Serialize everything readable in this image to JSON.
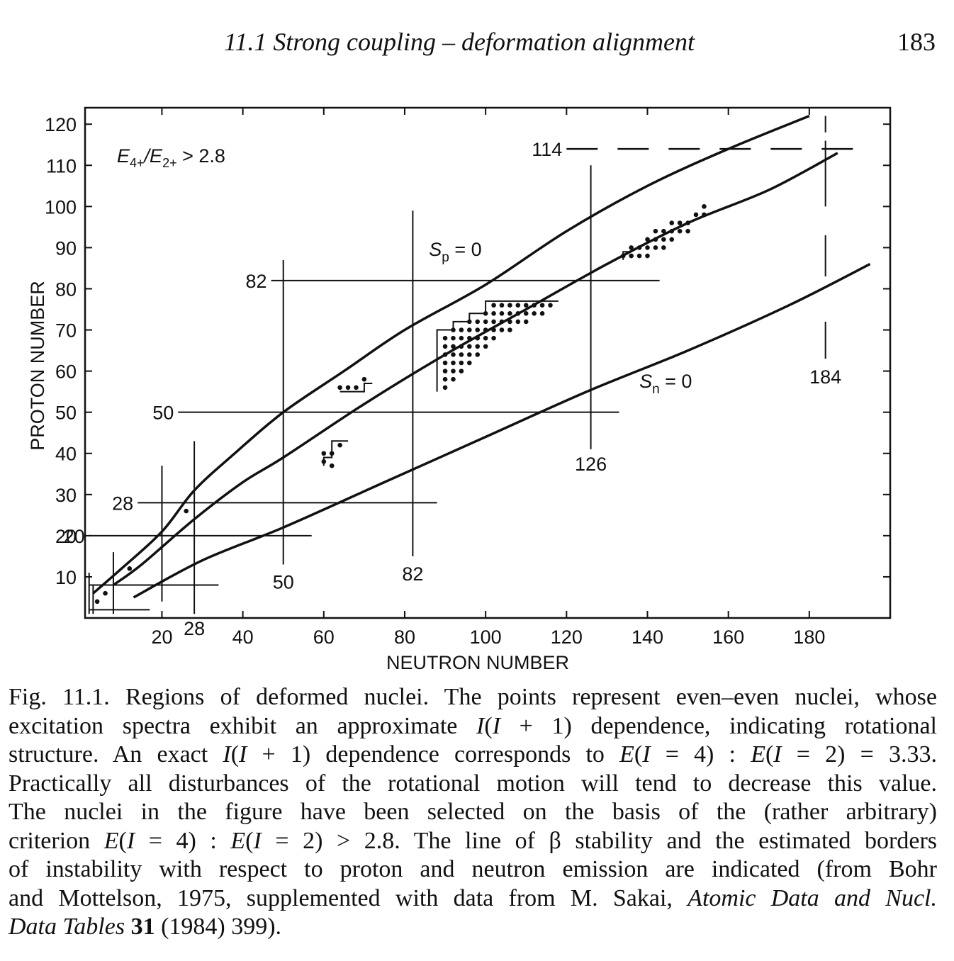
{
  "header": {
    "running_title": "11.1 Strong coupling – deformation alignment",
    "page_number": "183"
  },
  "chart_data": {
    "type": "line",
    "xlabel": "NEUTRON NUMBER",
    "ylabel": "PROTON NUMBER",
    "xlim": [
      1,
      200
    ],
    "ylim": [
      0,
      124
    ],
    "x_ticks": [
      "20",
      "40",
      "60",
      "80",
      "100",
      "120",
      "140",
      "160",
      "180"
    ],
    "y_ticks": [
      "10",
      "20",
      "30",
      "40",
      "50",
      "60",
      "70",
      "80",
      "90",
      "100",
      "110",
      "120"
    ],
    "corner_label": {
      "main": "E",
      "sub1": "4+",
      "mid": "/E",
      "sub2": "2+",
      "tail": " > 2.8"
    },
    "magic_proton_lines": [
      {
        "label": "20",
        "z": 20,
        "n_range": [
          2,
          57
        ]
      },
      {
        "label": "28",
        "z": 28,
        "n_range": [
          14,
          88
        ]
      },
      {
        "label": "50",
        "z": 50,
        "n_range": [
          24,
          133
        ]
      },
      {
        "label": "82",
        "z": 82,
        "n_range": [
          47,
          143
        ]
      },
      {
        "label": "114",
        "z": 114,
        "n_range": [
          120,
          195
        ]
      }
    ],
    "magic_neutron_lines": [
      {
        "label": "20",
        "n": 20,
        "z_range": [
          4,
          37
        ]
      },
      {
        "label": "28",
        "n": 28,
        "z_range": [
          1,
          43
        ]
      },
      {
        "label": "50",
        "n": 50,
        "z_range": [
          13,
          87
        ]
      },
      {
        "label": "82",
        "n": 82,
        "z_range": [
          15,
          99
        ]
      },
      {
        "label": "126",
        "n": 126,
        "z_range": [
          41,
          110
        ]
      },
      {
        "label": "184",
        "n": 184,
        "z_range": [
          61,
          122
        ]
      }
    ],
    "series": [
      {
        "name": "Sp = 0",
        "sub": "p",
        "x": [
          3,
          10,
          20,
          28,
          38,
          50,
          65,
          80,
          100,
          120,
          140,
          160,
          180
        ],
        "y": [
          6,
          12,
          21,
          31,
          40,
          50,
          60,
          70,
          81,
          94,
          105,
          114,
          122
        ]
      },
      {
        "name": "",
        "x": [
          8,
          15,
          28,
          40,
          50,
          70,
          90,
          110,
          130,
          150,
          170,
          187
        ],
        "y": [
          8,
          13,
          24,
          33,
          39,
          52,
          64,
          75,
          86,
          96,
          104,
          113
        ]
      },
      {
        "name": "Sn = 0",
        "sub": "n",
        "x": [
          13,
          30,
          50,
          75,
          100,
          125,
          150,
          175,
          195
        ],
        "y": [
          5,
          14,
          22,
          33,
          44,
          55,
          65,
          76,
          86
        ]
      }
    ],
    "nuclei_points": [
      {
        "n": 4,
        "z": 4
      },
      {
        "n": 6,
        "z": 6
      },
      {
        "n": 12,
        "z": 12
      },
      {
        "n": 26,
        "z": 26
      },
      {
        "n": 60,
        "z": 38
      },
      {
        "n": 62,
        "z": 40
      },
      {
        "n": 62,
        "z": 37
      },
      {
        "n": 64,
        "z": 42
      },
      {
        "n": 60,
        "z": 40
      },
      {
        "n": 64,
        "z": 56
      },
      {
        "n": 66,
        "z": 56
      },
      {
        "n": 68,
        "z": 56
      },
      {
        "n": 70,
        "z": 58
      },
      {
        "n": 90,
        "z": 56
      },
      {
        "n": 90,
        "z": 58
      },
      {
        "n": 90,
        "z": 60
      },
      {
        "n": 90,
        "z": 62
      },
      {
        "n": 90,
        "z": 64
      },
      {
        "n": 90,
        "z": 66
      },
      {
        "n": 90,
        "z": 68
      },
      {
        "n": 92,
        "z": 58
      },
      {
        "n": 92,
        "z": 60
      },
      {
        "n": 92,
        "z": 62
      },
      {
        "n": 92,
        "z": 64
      },
      {
        "n": 92,
        "z": 66
      },
      {
        "n": 92,
        "z": 68
      },
      {
        "n": 92,
        "z": 70
      },
      {
        "n": 94,
        "z": 60
      },
      {
        "n": 94,
        "z": 62
      },
      {
        "n": 94,
        "z": 64
      },
      {
        "n": 94,
        "z": 66
      },
      {
        "n": 94,
        "z": 68
      },
      {
        "n": 94,
        "z": 70
      },
      {
        "n": 96,
        "z": 62
      },
      {
        "n": 96,
        "z": 64
      },
      {
        "n": 96,
        "z": 66
      },
      {
        "n": 96,
        "z": 68
      },
      {
        "n": 96,
        "z": 70
      },
      {
        "n": 96,
        "z": 72
      },
      {
        "n": 98,
        "z": 64
      },
      {
        "n": 98,
        "z": 66
      },
      {
        "n": 98,
        "z": 68
      },
      {
        "n": 98,
        "z": 70
      },
      {
        "n": 98,
        "z": 72
      },
      {
        "n": 100,
        "z": 66
      },
      {
        "n": 100,
        "z": 68
      },
      {
        "n": 100,
        "z": 70
      },
      {
        "n": 100,
        "z": 72
      },
      {
        "n": 100,
        "z": 74
      },
      {
        "n": 102,
        "z": 68
      },
      {
        "n": 102,
        "z": 70
      },
      {
        "n": 102,
        "z": 72
      },
      {
        "n": 102,
        "z": 74
      },
      {
        "n": 102,
        "z": 76
      },
      {
        "n": 104,
        "z": 70
      },
      {
        "n": 104,
        "z": 72
      },
      {
        "n": 104,
        "z": 74
      },
      {
        "n": 104,
        "z": 76
      },
      {
        "n": 106,
        "z": 70
      },
      {
        "n": 106,
        "z": 72
      },
      {
        "n": 106,
        "z": 74
      },
      {
        "n": 106,
        "z": 76
      },
      {
        "n": 108,
        "z": 72
      },
      {
        "n": 108,
        "z": 74
      },
      {
        "n": 108,
        "z": 76
      },
      {
        "n": 110,
        "z": 72
      },
      {
        "n": 110,
        "z": 74
      },
      {
        "n": 110,
        "z": 76
      },
      {
        "n": 112,
        "z": 74
      },
      {
        "n": 112,
        "z": 76
      },
      {
        "n": 114,
        "z": 74
      },
      {
        "n": 114,
        "z": 76
      },
      {
        "n": 116,
        "z": 76
      },
      {
        "n": 134,
        "z": 88
      },
      {
        "n": 136,
        "z": 88
      },
      {
        "n": 136,
        "z": 90
      },
      {
        "n": 138,
        "z": 88
      },
      {
        "n": 138,
        "z": 90
      },
      {
        "n": 140,
        "z": 88
      },
      {
        "n": 140,
        "z": 90
      },
      {
        "n": 140,
        "z": 92
      },
      {
        "n": 142,
        "z": 90
      },
      {
        "n": 142,
        "z": 92
      },
      {
        "n": 142,
        "z": 94
      },
      {
        "n": 144,
        "z": 90
      },
      {
        "n": 144,
        "z": 92
      },
      {
        "n": 144,
        "z": 94
      },
      {
        "n": 146,
        "z": 92
      },
      {
        "n": 146,
        "z": 94
      },
      {
        "n": 146,
        "z": 96
      },
      {
        "n": 148,
        "z": 94
      },
      {
        "n": 148,
        "z": 96
      },
      {
        "n": 150,
        "z": 94
      },
      {
        "n": 150,
        "z": 96
      },
      {
        "n": 152,
        "z": 98
      },
      {
        "n": 154,
        "z": 98
      },
      {
        "n": 154,
        "z": 100
      }
    ]
  },
  "caption": {
    "lines": [
      [
        {
          "t": "Fig. 11.1.  Regions of deformed nuclei. The points represent even–even nuclei, whose"
        }
      ],
      [
        {
          "t": "excitation spectra exhibit an approximate "
        },
        {
          "t": "I",
          "c": "ital"
        },
        {
          "t": "("
        },
        {
          "t": "I",
          "c": "ital"
        },
        {
          "t": " + 1) dependence, indicating rotational"
        }
      ],
      [
        {
          "t": "structure. An exact "
        },
        {
          "t": "I",
          "c": "ital"
        },
        {
          "t": "("
        },
        {
          "t": "I",
          "c": "ital"
        },
        {
          "t": " + 1) dependence corresponds to "
        },
        {
          "t": "E",
          "c": "ital"
        },
        {
          "t": "("
        },
        {
          "t": "I",
          "c": "ital"
        },
        {
          "t": " = 4) : "
        },
        {
          "t": "E",
          "c": "ital"
        },
        {
          "t": "("
        },
        {
          "t": "I",
          "c": "ital"
        },
        {
          "t": " = 2) = 3.33."
        }
      ],
      [
        {
          "t": "Practically all disturbances of the rotational motion will tend to decrease this value."
        }
      ],
      [
        {
          "t": "The nuclei in the figure have been selected on the basis of the (rather arbitrary)"
        }
      ],
      [
        {
          "t": "criterion "
        },
        {
          "t": "E",
          "c": "ital"
        },
        {
          "t": "("
        },
        {
          "t": "I",
          "c": "ital"
        },
        {
          "t": " = 4) : "
        },
        {
          "t": "E",
          "c": "ital"
        },
        {
          "t": "("
        },
        {
          "t": "I",
          "c": "ital"
        },
        {
          "t": " = 2) > 2.8. The line of β stability and the estimated borders"
        }
      ],
      [
        {
          "t": "of instability with respect to proton and neutron emission are indicated (from Bohr"
        }
      ],
      [
        {
          "t": "and Mottelson, 1975, supplemented with data from M. Sakai, "
        },
        {
          "t": "Atomic Data and Nucl.",
          "c": "ital"
        }
      ],
      [
        {
          "t": "Data Tables",
          "c": "ital"
        },
        {
          "t": " "
        },
        {
          "t": "31",
          "c": "bold"
        },
        {
          "t": " (1984) 399)."
        }
      ]
    ]
  }
}
